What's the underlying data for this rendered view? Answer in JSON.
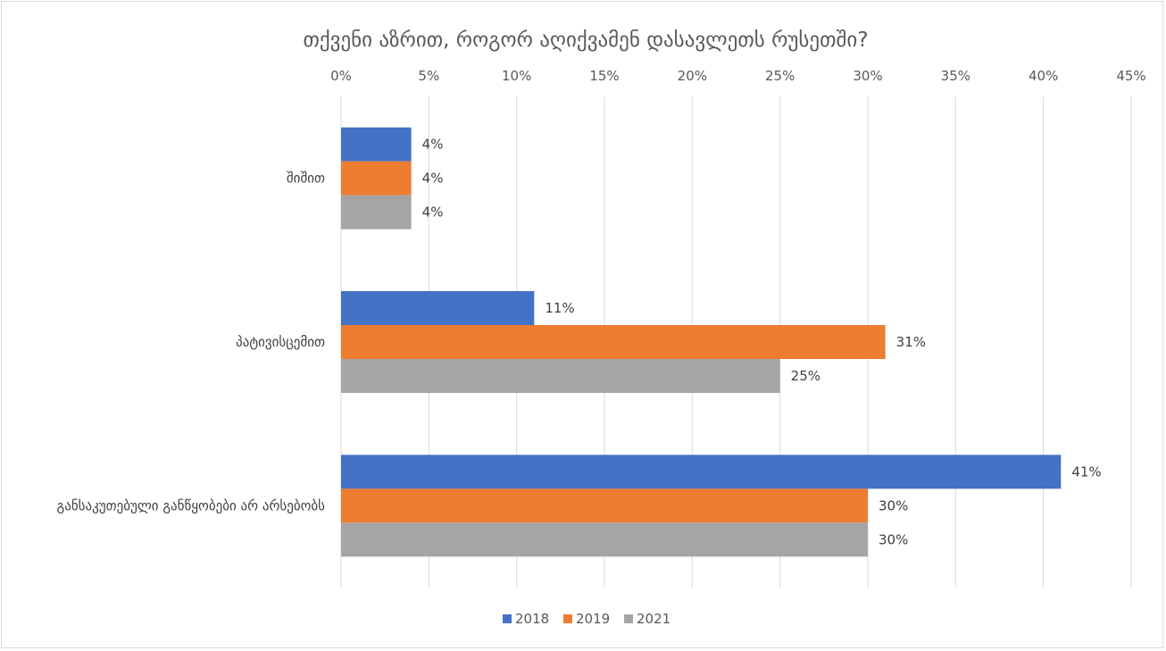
{
  "chart_data": {
    "type": "bar",
    "orientation": "horizontal",
    "title": "თქვენი აზრით, როგორ აღიქვამენ დასავლეთს რუსეთში?",
    "categories": [
      "შიშით",
      "პატივისცემით",
      "განსაკუთებული განწყობები არ არსებობს"
    ],
    "series": [
      {
        "name": "2018",
        "color": "#4472C4",
        "values": [
          4,
          11,
          41
        ]
      },
      {
        "name": "2019",
        "color": "#ED7D31",
        "values": [
          4,
          31,
          30
        ]
      },
      {
        "name": "2021",
        "color": "#A5A5A5",
        "values": [
          4,
          25,
          30
        ]
      }
    ],
    "xlim": [
      0,
      45
    ],
    "xticks": [
      0,
      5,
      10,
      15,
      20,
      25,
      30,
      35,
      40,
      45
    ],
    "value_suffix": "%",
    "x_axis_position": "top",
    "grid": true,
    "legend": "bottom"
  }
}
